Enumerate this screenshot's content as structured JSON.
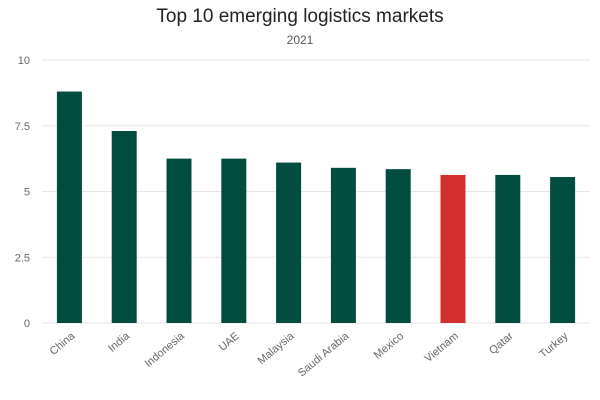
{
  "chart_data": {
    "type": "bar",
    "title": "Top 10 emerging logistics markets",
    "subtitle": "2021",
    "xlabel": "",
    "ylabel": "",
    "categories": [
      "China",
      "India",
      "Indonesia",
      "UAE",
      "Malaysia",
      "Saudi Arabia",
      "Mexico",
      "Vietnam",
      "Qatar",
      "Turkey"
    ],
    "values": [
      8.8,
      7.3,
      6.25,
      6.25,
      6.1,
      5.9,
      5.85,
      5.63,
      5.63,
      5.55
    ],
    "ylim": [
      0,
      10
    ],
    "yticks": [
      0,
      2.5,
      5,
      7.5,
      10
    ],
    "ytick_labels": [
      "0",
      "2.5",
      "5",
      "7.5",
      "10"
    ],
    "grid": true,
    "legend": "none",
    "colors": {
      "bar": "#004d40",
      "highlight": "#d32f2f",
      "highlight_category": "Vietnam",
      "grid": "#e6e6e6",
      "axis_text": "#666666"
    }
  }
}
